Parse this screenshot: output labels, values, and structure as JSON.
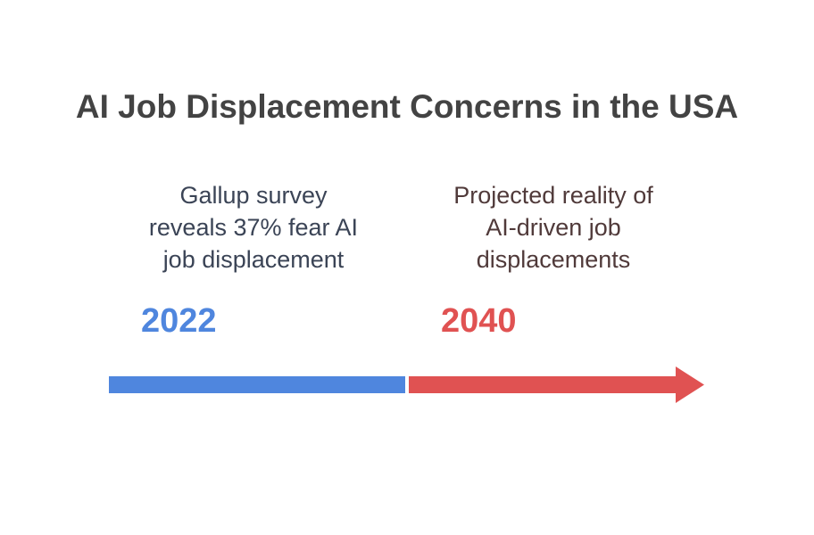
{
  "title": "AI Job Displacement Concerns in the USA",
  "events": [
    {
      "year": "2022",
      "description": "Gallup survey\nreveals 37% fear AI\njob displacement",
      "color": "#4f86de"
    },
    {
      "year": "2040",
      "description": "Projected reality of\nAI-driven job\ndisplacements",
      "color": "#e05252"
    }
  ]
}
